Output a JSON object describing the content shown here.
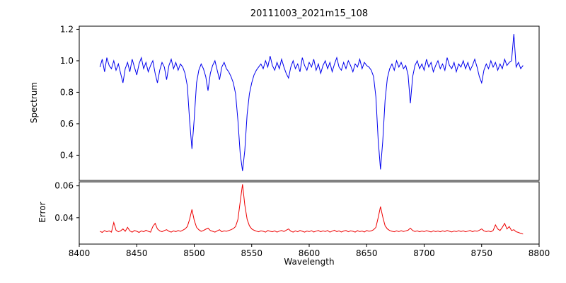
{
  "title": "20111003_2021m15_108",
  "xlabel": "Wavelength",
  "chart_data": {
    "type": "line",
    "title": "20111003_2021m15_108",
    "xlabel": "Wavelength",
    "xlim": [
      8400,
      8800
    ],
    "xticks": [
      8400,
      8450,
      8500,
      8550,
      8600,
      8650,
      8700,
      8750,
      8800
    ],
    "xtick_labels": [
      "8400",
      "8450",
      "8500",
      "8550",
      "8600",
      "8650",
      "8700",
      "8750",
      "8800"
    ],
    "grid": false,
    "legend": "none",
    "panels": [
      {
        "name": "spectrum",
        "ylabel": "Spectrum",
        "color": "#0000ee",
        "ylim": [
          0.24,
          1.22
        ],
        "yticks": [
          1.2,
          1.0,
          0.8,
          0.6,
          0.4
        ],
        "ytick_labels": [
          "1.2",
          "1.0",
          "0.8",
          "0.6",
          "0.4"
        ],
        "x_start": 8418,
        "x_step": 2,
        "y": [
          0.96,
          1.01,
          0.93,
          1.02,
          0.97,
          0.95,
          1.0,
          0.94,
          0.98,
          0.92,
          0.86,
          0.95,
          0.99,
          0.93,
          1.01,
          0.96,
          0.91,
          0.98,
          1.02,
          0.95,
          0.99,
          0.93,
          0.97,
          1.0,
          0.92,
          0.86,
          0.94,
          0.99,
          0.96,
          0.88,
          0.97,
          1.01,
          0.95,
          0.99,
          0.94,
          0.98,
          0.96,
          0.92,
          0.84,
          0.62,
          0.44,
          0.63,
          0.86,
          0.94,
          0.98,
          0.95,
          0.9,
          0.81,
          0.92,
          0.97,
          1.0,
          0.94,
          0.88,
          0.96,
          0.99,
          0.95,
          0.93,
          0.9,
          0.86,
          0.79,
          0.62,
          0.41,
          0.3,
          0.43,
          0.66,
          0.79,
          0.86,
          0.91,
          0.94,
          0.96,
          0.98,
          0.95,
          1.0,
          0.96,
          1.03,
          0.97,
          0.94,
          0.99,
          0.95,
          1.01,
          0.96,
          0.92,
          0.89,
          0.96,
          1.0,
          0.95,
          0.98,
          0.93,
          1.02,
          0.97,
          0.94,
          0.99,
          0.96,
          1.01,
          0.94,
          0.98,
          0.92,
          0.97,
          1.0,
          0.95,
          0.99,
          0.93,
          0.98,
          1.02,
          0.96,
          0.94,
          0.99,
          0.95,
          1.0,
          0.97,
          0.93,
          0.98,
          0.96,
          1.01,
          0.95,
          0.99,
          0.97,
          0.96,
          0.94,
          0.9,
          0.77,
          0.5,
          0.31,
          0.49,
          0.75,
          0.89,
          0.95,
          0.98,
          0.94,
          1.0,
          0.96,
          0.99,
          0.95,
          0.97,
          0.91,
          0.73,
          0.9,
          0.97,
          1.0,
          0.95,
          0.98,
          0.94,
          1.01,
          0.96,
          0.99,
          0.93,
          0.97,
          1.0,
          0.95,
          0.98,
          0.94,
          1.02,
          0.97,
          0.95,
          0.99,
          0.93,
          0.98,
          0.96,
          1.0,
          0.95,
          0.99,
          0.94,
          0.97,
          1.01,
          0.96,
          0.9,
          0.86,
          0.94,
          0.98,
          0.95,
          1.0,
          0.96,
          0.99,
          0.94,
          0.98,
          0.95,
          1.01,
          0.97,
          0.99,
          1.0,
          1.17,
          0.96,
          0.99,
          0.95,
          0.97
        ]
      },
      {
        "name": "error",
        "ylabel": "Error",
        "color": "#ee0000",
        "ylim": [
          0.0235,
          0.0625
        ],
        "yticks": [
          0.06,
          0.04
        ],
        "ytick_labels": [
          "0.06",
          "0.04"
        ],
        "x_start": 8418,
        "x_step": 2,
        "y": [
          0.0315,
          0.0308,
          0.032,
          0.0312,
          0.0318,
          0.031,
          0.037,
          0.0322,
          0.0312,
          0.0318,
          0.033,
          0.0315,
          0.034,
          0.0318,
          0.031,
          0.032,
          0.0315,
          0.0308,
          0.0318,
          0.0312,
          0.0322,
          0.0315,
          0.031,
          0.0345,
          0.0365,
          0.033,
          0.0318,
          0.0312,
          0.032,
          0.0325,
          0.0315,
          0.031,
          0.0318,
          0.0313,
          0.032,
          0.0315,
          0.0322,
          0.033,
          0.0345,
          0.039,
          0.0452,
          0.0385,
          0.034,
          0.0325,
          0.0315,
          0.032,
          0.0328,
          0.0335,
          0.032,
          0.0315,
          0.031,
          0.0318,
          0.0325,
          0.0312,
          0.0318,
          0.0315,
          0.032,
          0.0325,
          0.0332,
          0.0345,
          0.039,
          0.05,
          0.061,
          0.048,
          0.039,
          0.035,
          0.033,
          0.0322,
          0.0316,
          0.0312,
          0.0318,
          0.0315,
          0.031,
          0.032,
          0.0315,
          0.0312,
          0.0318,
          0.031,
          0.0316,
          0.032,
          0.0314,
          0.0322,
          0.033,
          0.0316,
          0.031,
          0.0318,
          0.0312,
          0.032,
          0.0315,
          0.031,
          0.0317,
          0.0313,
          0.0319,
          0.0311,
          0.0316,
          0.032,
          0.0312,
          0.0318,
          0.0314,
          0.032,
          0.031,
          0.0316,
          0.0322,
          0.0313,
          0.0318,
          0.0311,
          0.0317,
          0.032,
          0.0312,
          0.0318,
          0.0315,
          0.031,
          0.0319,
          0.0313,
          0.0317,
          0.0311,
          0.032,
          0.0315,
          0.0318,
          0.0325,
          0.034,
          0.04,
          0.047,
          0.0405,
          0.035,
          0.033,
          0.032,
          0.0315,
          0.0312,
          0.0318,
          0.0313,
          0.0319,
          0.0314,
          0.0318,
          0.0322,
          0.0335,
          0.032,
          0.0314,
          0.0318,
          0.0312,
          0.0317,
          0.0313,
          0.0319,
          0.0315,
          0.0311,
          0.0318,
          0.0313,
          0.0317,
          0.0312,
          0.0318,
          0.0314,
          0.032,
          0.0315,
          0.0311,
          0.0317,
          0.0313,
          0.0319,
          0.0314,
          0.0318,
          0.0312,
          0.0316,
          0.032,
          0.0313,
          0.0318,
          0.0315,
          0.0322,
          0.033,
          0.0318,
          0.0313,
          0.0317,
          0.0312,
          0.032,
          0.0355,
          0.033,
          0.032,
          0.034,
          0.0365,
          0.033,
          0.0345,
          0.032,
          0.0325,
          0.0312,
          0.0308,
          0.0302,
          0.0298
        ]
      }
    ]
  }
}
